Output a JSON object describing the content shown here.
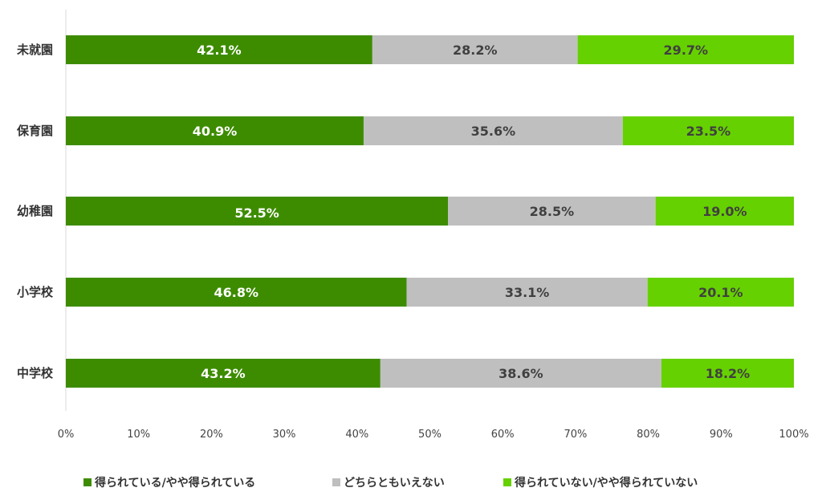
{
  "chart_data": {
    "type": "bar",
    "orientation": "horizontal",
    "stacked": true,
    "categories": [
      "未就園",
      "保育園",
      "幼稚園",
      "小学校",
      "中学校"
    ],
    "series": [
      {
        "name": "得られている/やや得られている",
        "values": [
          42.1,
          40.9,
          52.5,
          46.8,
          43.2
        ],
        "color": "#3d8c00",
        "label_color": "#ffffff"
      },
      {
        "name": "どちらともいえない",
        "values": [
          28.2,
          35.6,
          28.5,
          33.1,
          38.6
        ],
        "color": "#bfbfbf",
        "label_color": "#404040"
      },
      {
        "name": "得られていない/やや得られていない",
        "values": [
          29.7,
          23.5,
          19.0,
          20.1,
          18.2
        ],
        "color": "#66d100",
        "label_color": "#404040"
      }
    ],
    "data_labels": [
      [
        "42.1%",
        "28.2%",
        "29.7%"
      ],
      [
        "40.9%",
        "35.6%",
        "23.5%"
      ],
      [
        "52.5%",
        "28.5%",
        "19.0%"
      ],
      [
        "46.8%",
        "33.1%",
        "20.1%"
      ],
      [
        "43.2%",
        "38.6%",
        "18.2%"
      ]
    ],
    "x_ticks": [
      "0%",
      "10%",
      "20%",
      "30%",
      "40%",
      "50%",
      "60%",
      "70%",
      "80%",
      "90%",
      "100%"
    ],
    "xlim": [
      0,
      100
    ],
    "grid": false,
    "legend_position": "bottom"
  }
}
